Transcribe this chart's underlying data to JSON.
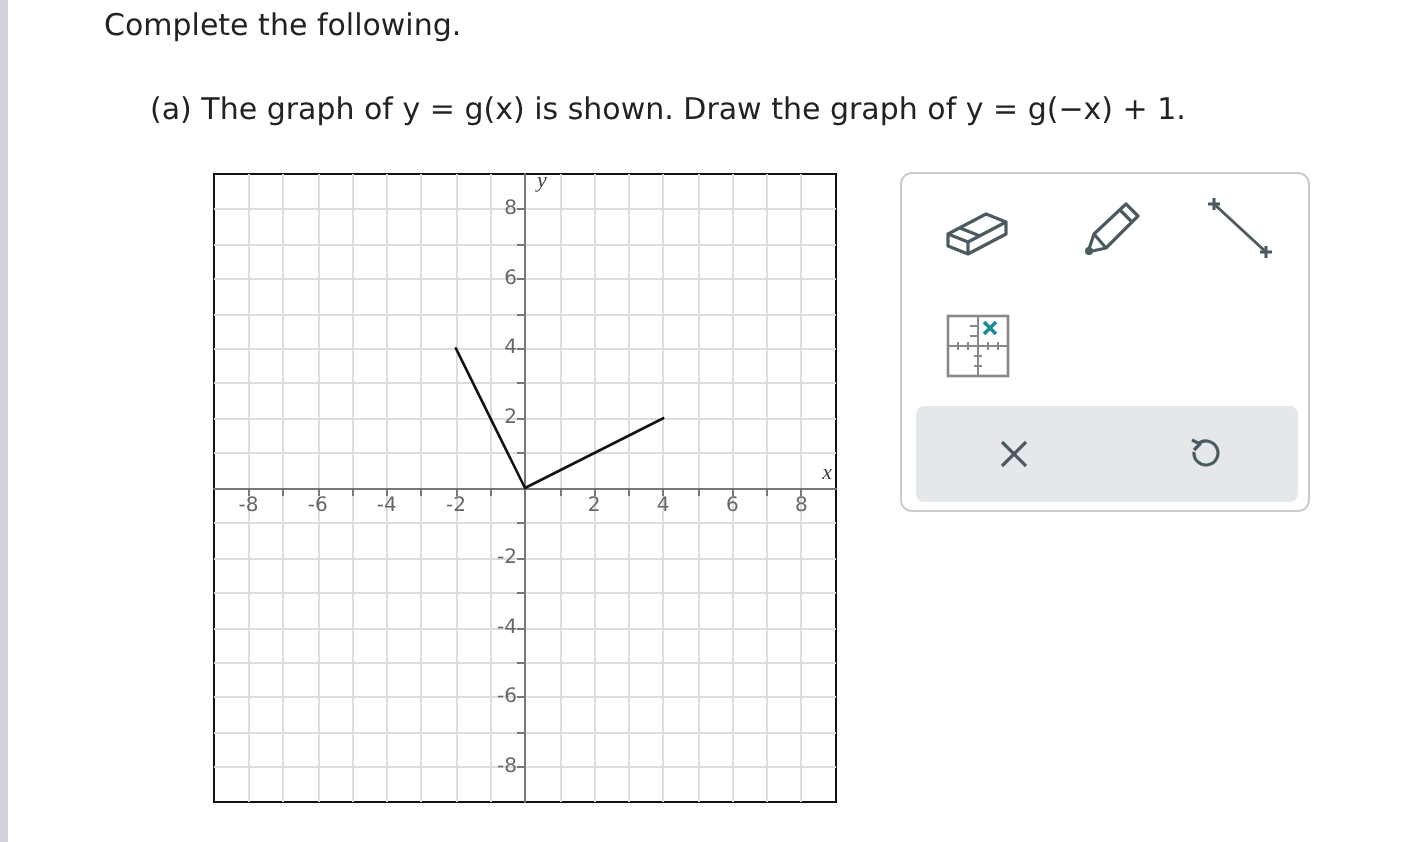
{
  "chart_data": {
    "type": "line",
    "title": "Complete the following.",
    "subtitle": "(a) The graph of y = g(x) is shown. Draw the graph of y = g(−x) + 1.",
    "xlabel": "x",
    "ylabel": "y",
    "x": [
      -2,
      0,
      4
    ],
    "series": [
      {
        "color": "#111111",
        "values": [
          4,
          0,
          2
        ]
      }
    ],
    "xlim": [
      -9,
      9
    ],
    "ylim": [
      -9,
      9
    ],
    "xticks": [
      -8,
      {
        "value": -7,
        "label": null
      },
      -6,
      {
        "value": -5,
        "label": null
      },
      -4,
      {
        "value": -3,
        "label": null
      },
      -2,
      {
        "value": -1,
        "label": null
      },
      {
        "value": 0,
        "label": null
      },
      {
        "value": 1,
        "label": null
      },
      2,
      {
        "value": 3,
        "label": null
      },
      4,
      {
        "value": 5,
        "label": null
      },
      6,
      {
        "value": 7,
        "label": null
      },
      8
    ],
    "yticks": [
      -8,
      {
        "value": -7,
        "label": null
      },
      -6,
      {
        "value": -5,
        "label": null
      },
      -4,
      {
        "value": -3,
        "label": null
      },
      -2,
      {
        "value": -1,
        "label": null
      },
      {
        "value": 0,
        "label": null
      },
      {
        "value": 1,
        "label": null
      },
      2,
      {
        "value": 3,
        "label": null
      },
      4,
      {
        "value": 5,
        "label": null
      },
      6,
      {
        "value": 7,
        "label": null
      },
      8
    ],
    "grid": true,
    "marker": "none",
    "line_style": "solid"
  }
}
